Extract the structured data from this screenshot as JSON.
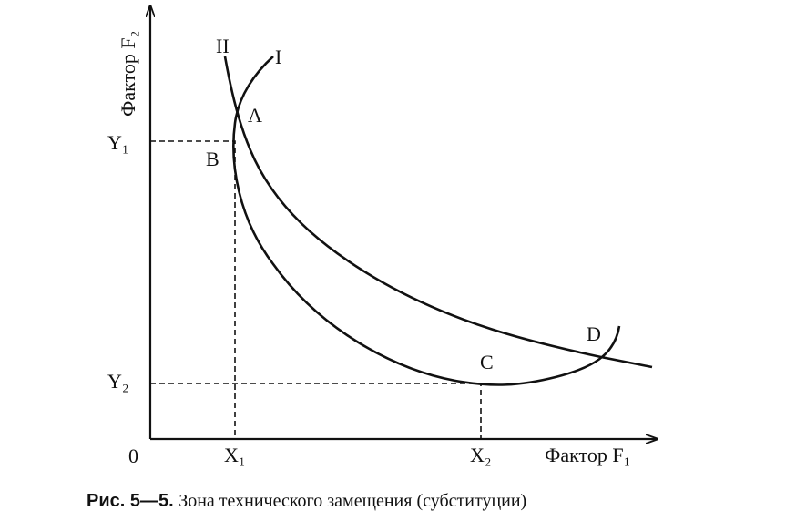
{
  "axes": {
    "y_label": "Фактор F₂",
    "x_label": "Фактор F₁",
    "origin": "0"
  },
  "ticks": {
    "y1": "Y₁",
    "y2": "Y₂",
    "x1": "X₁",
    "x2": "X₂"
  },
  "points": {
    "a": "A",
    "b": "B",
    "c": "C",
    "d": "D"
  },
  "curves": {
    "i": "I",
    "ii": "II"
  },
  "caption": {
    "number": "Рис. 5—5.",
    "text": "Зона технического замещения (субституции)"
  }
}
